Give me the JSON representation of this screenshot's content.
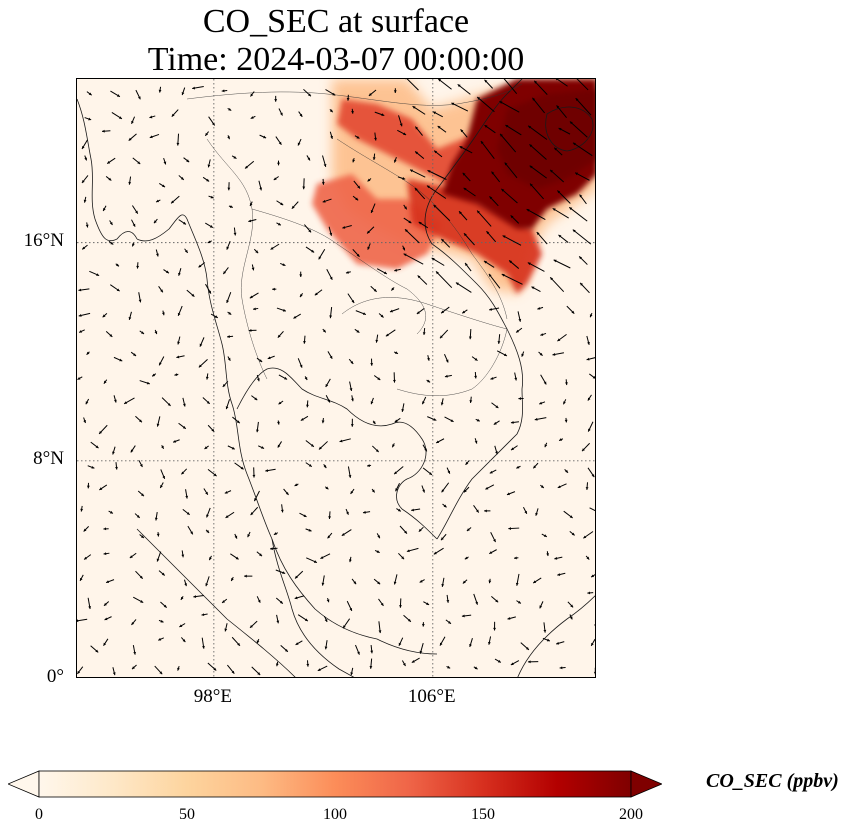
{
  "title": {
    "line1": "CO_SEC at surface",
    "line2": "Time: 2024-03-07 00:00:00"
  },
  "map": {
    "lon_range": [
      93.0,
      112.0
    ],
    "lat_range": [
      0.0,
      22.0
    ],
    "gridlines": "dotted",
    "lat_ticks": [
      {
        "value": 16,
        "label": "16°N"
      },
      {
        "value": 8,
        "label": "8°N"
      },
      {
        "value": 0,
        "label": "0°"
      }
    ],
    "lon_ticks": [
      {
        "value": 98,
        "label": "98°E"
      },
      {
        "value": 106,
        "label": "106°E"
      }
    ],
    "field_name": "CO_SEC",
    "overlay": "wind vectors (quiver)",
    "high_concentration_regions": [
      {
        "region": "northern Vietnam / Gulf of Tonkin",
        "approx_lon": [
          107.5,
          112.0
        ],
        "approx_lat": [
          17.0,
          22.0
        ],
        "value": 200
      },
      {
        "region": "northern Laos / Thailand border",
        "approx_lon": [
          102.5,
          107.5
        ],
        "approx_lat": [
          15.5,
          20.5
        ],
        "value": 130
      },
      {
        "region": "central Vietnam coast",
        "approx_lon": [
          105.5,
          109.0
        ],
        "approx_lat": [
          14.0,
          17.5
        ],
        "value": 150
      }
    ]
  },
  "colorbar": {
    "colormap": "OrRd",
    "min": 0,
    "max": 200,
    "ticks": [
      "0",
      "50",
      "100",
      "150",
      "200"
    ],
    "extend": "both",
    "label": "CO_SEC (ppbv)",
    "colors": [
      "#fff7ec",
      "#fee8c8",
      "#fdd49e",
      "#fdbb84",
      "#fc8d59",
      "#ef6548",
      "#d7301f",
      "#b30000",
      "#7f0000"
    ]
  }
}
